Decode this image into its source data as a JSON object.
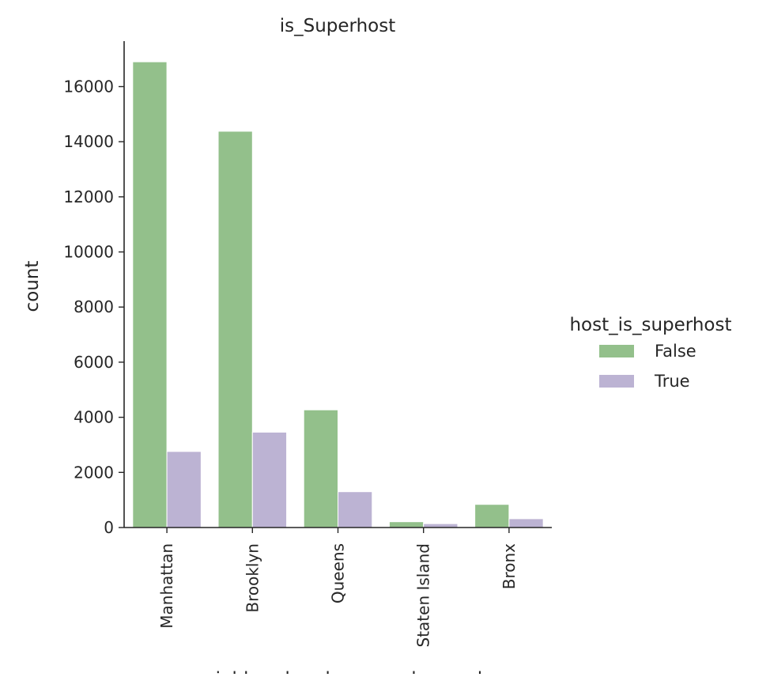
{
  "chart_data": {
    "type": "bar",
    "title": "is_Superhost",
    "xlabel": "neighbourhood_group_cleansed",
    "ylabel": "count",
    "categories": [
      "Manhattan",
      "Brooklyn",
      "Queens",
      "Staten Island",
      "Bronx"
    ],
    "series": [
      {
        "name": "False",
        "color": "#93c08b",
        "values": [
          16900,
          14380,
          4270,
          210,
          840
        ]
      },
      {
        "name": "True",
        "color": "#bcb3d3",
        "values": [
          2760,
          3460,
          1300,
          140,
          320
        ]
      }
    ],
    "ylim": [
      0,
      17650
    ],
    "yticks": [
      0,
      2000,
      4000,
      6000,
      8000,
      10000,
      12000,
      14000,
      16000
    ],
    "legend": {
      "title": "host_is_superhost",
      "placement": "right"
    },
    "grid": false
  }
}
